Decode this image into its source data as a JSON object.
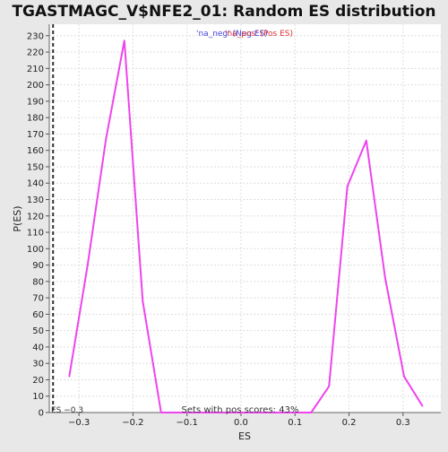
{
  "chart_data": {
    "type": "line",
    "title": "TGASTMAGC_V$NFE2_01: Random ES distribution",
    "xlabel": "ES",
    "ylabel": "P(ES)",
    "xlim": [
      -0.355,
      0.37
    ],
    "ylim": [
      0,
      237
    ],
    "x_ticks": [
      -0.3,
      -0.2,
      -0.1,
      0.0,
      0.1,
      0.2,
      0.3
    ],
    "x_tick_labels": [
      "−0.3",
      "−0.2",
      "−0.1",
      "0.0",
      "0.1",
      "0.2",
      "0.3"
    ],
    "y_ticks": [
      0,
      10,
      20,
      30,
      40,
      50,
      60,
      70,
      80,
      90,
      100,
      110,
      120,
      130,
      140,
      150,
      160,
      170,
      180,
      190,
      200,
      210,
      220,
      230
    ],
    "grid": true,
    "series": [
      {
        "name": "'na_neg' (Neg ES)",
        "color": "#ee44ee",
        "x": [
          -0.318,
          -0.284,
          -0.25,
          -0.216,
          -0.182,
          -0.148,
          -0.114,
          -0.08,
          -0.046
        ],
        "y": [
          22,
          90,
          167,
          227,
          68,
          0,
          0,
          0,
          0
        ]
      },
      {
        "name": "'na_pos' (Pos ES)",
        "color": "#ee44ee",
        "x": [
          -0.046,
          0.13,
          0.163,
          0.197,
          0.232,
          0.267,
          0.302,
          0.336
        ],
        "y": [
          0,
          0,
          16,
          138,
          166,
          82,
          22,
          4
        ]
      }
    ],
    "legend": [
      {
        "label": "'na_neg' (Neg ES)",
        "color": "#4444dd"
      },
      {
        "label": "'na_pos' (Pos ES)",
        "color": "#dd3333"
      }
    ],
    "legend_placement": "top-center",
    "annotations": {
      "es_marker_label": "ES −0.3",
      "es_marker_x": -0.348,
      "pos_scores_text": "Sets with pos scores: 43%"
    }
  }
}
